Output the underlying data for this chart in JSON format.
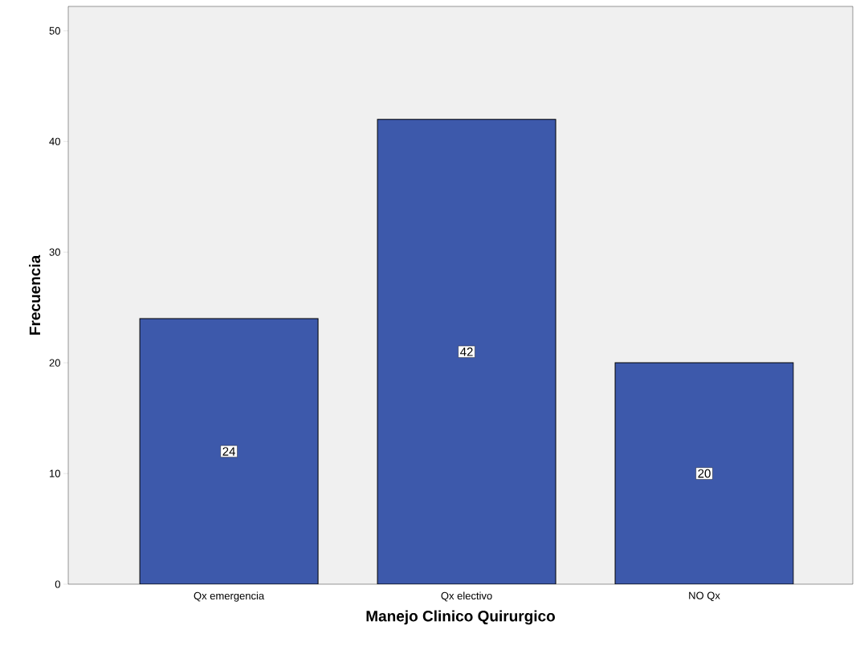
{
  "chart_data": {
    "type": "bar",
    "xlabel": "Manejo Clinico Quirurgico",
    "ylabel": "Frecuencia",
    "categories": [
      "Qx emergencia",
      "Qx electivo",
      "NO Qx"
    ],
    "values": [
      24,
      42,
      20
    ],
    "color": "#3d59ab",
    "data_labels": true,
    "ylim": [
      0,
      52.2
    ],
    "yticks": [
      0,
      10,
      20,
      30,
      40,
      50
    ],
    "grid": false
  }
}
